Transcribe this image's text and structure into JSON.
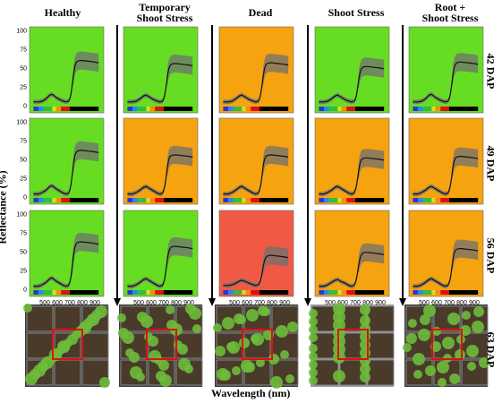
{
  "columns": [
    "Healthy",
    "Temporary\nShoot Stress",
    "Dead",
    "Shoot Stress",
    "Root +\nShoot Stress"
  ],
  "rows": [
    "42 DAP",
    "49 DAP",
    "56 DAP",
    "63 DAP"
  ],
  "axis": {
    "ylabel": "Reflectance (%)",
    "xlabel": "Wavelength (nm)",
    "yticks": [
      "0",
      "25",
      "50",
      "75",
      "100"
    ],
    "xticks": [
      "500",
      "600",
      "700",
      "800",
      "900"
    ]
  },
  "colors": {
    "healthy": "#66dd22",
    "stress": "#f5a30f",
    "dead": "#f05a45",
    "band": "#707070",
    "mean": "#111111"
  },
  "chart_data": {
    "type": "line",
    "title": "",
    "xlabel": "Wavelength (nm)",
    "ylabel": "Reflectance (%)",
    "xlim": [
      400,
      950
    ],
    "ylim": [
      0,
      100
    ],
    "grid": false,
    "x": [
      410,
      450,
      480,
      510,
      540,
      560,
      590,
      620,
      650,
      670,
      690,
      700,
      710,
      720,
      730,
      740,
      750,
      760,
      780,
      800,
      850,
      900,
      930
    ],
    "panels": [
      {
        "row": "42 DAP",
        "column": "Healthy",
        "status": "healthy",
        "mean": [
          5,
          5,
          6,
          9,
          14,
          15,
          11,
          8,
          6,
          5,
          6,
          9,
          16,
          28,
          42,
          52,
          57,
          59,
          60,
          60,
          59,
          58,
          57
        ]
      },
      {
        "row": "42 DAP",
        "column": "Temporary Shoot Stress",
        "status": "healthy",
        "mean": [
          5,
          5,
          6,
          9,
          13,
          14,
          11,
          8,
          6,
          5,
          6,
          9,
          16,
          27,
          40,
          49,
          53,
          55,
          56,
          56,
          55,
          54,
          53
        ]
      },
      {
        "row": "42 DAP",
        "column": "Dead",
        "status": "stress",
        "mean": [
          5,
          5,
          6,
          9,
          13,
          14,
          11,
          8,
          6,
          5,
          6,
          9,
          16,
          27,
          40,
          49,
          54,
          56,
          57,
          57,
          56,
          55,
          54
        ]
      },
      {
        "row": "42 DAP",
        "column": "Shoot Stress",
        "status": "healthy",
        "mean": [
          5,
          5,
          6,
          9,
          13,
          14,
          11,
          8,
          6,
          5,
          6,
          8,
          14,
          25,
          37,
          45,
          49,
          51,
          52,
          52,
          51,
          50,
          49
        ]
      },
      {
        "row": "42 DAP",
        "column": "Root + Shoot Stress",
        "status": "healthy",
        "mean": [
          5,
          5,
          6,
          9,
          14,
          15,
          11,
          8,
          6,
          5,
          6,
          9,
          16,
          28,
          42,
          51,
          55,
          57,
          58,
          58,
          57,
          56,
          55
        ]
      },
      {
        "row": "49 DAP",
        "column": "Healthy",
        "status": "healthy",
        "mean": [
          4,
          4,
          6,
          9,
          14,
          15,
          11,
          8,
          5,
          4,
          5,
          9,
          17,
          30,
          45,
          55,
          59,
          61,
          62,
          62,
          61,
          60,
          59
        ]
      },
      {
        "row": "49 DAP",
        "column": "Temporary Shoot Stress",
        "status": "stress",
        "mean": [
          4,
          4,
          6,
          9,
          13,
          14,
          11,
          8,
          5,
          4,
          5,
          9,
          16,
          28,
          41,
          50,
          54,
          55,
          56,
          56,
          55,
          54,
          53
        ]
      },
      {
        "row": "49 DAP",
        "column": "Dead",
        "status": "stress",
        "mean": [
          4,
          4,
          6,
          9,
          13,
          14,
          11,
          8,
          5,
          4,
          5,
          9,
          16,
          28,
          42,
          50,
          54,
          55,
          56,
          56,
          55,
          54,
          53
        ]
      },
      {
        "row": "49 DAP",
        "column": "Shoot Stress",
        "status": "stress",
        "mean": [
          4,
          4,
          6,
          9,
          13,
          14,
          11,
          8,
          5,
          4,
          5,
          9,
          15,
          26,
          38,
          46,
          50,
          51,
          52,
          52,
          51,
          50,
          49
        ]
      },
      {
        "row": "49 DAP",
        "column": "Root + Shoot Stress",
        "status": "stress",
        "mean": [
          4,
          4,
          6,
          9,
          13,
          14,
          11,
          8,
          5,
          4,
          5,
          9,
          16,
          27,
          40,
          48,
          52,
          53,
          54,
          54,
          53,
          52,
          51
        ]
      },
      {
        "row": "56 DAP",
        "column": "Healthy",
        "status": "healthy",
        "mean": [
          4,
          4,
          6,
          9,
          14,
          15,
          11,
          8,
          5,
          4,
          5,
          9,
          17,
          31,
          46,
          56,
          60,
          62,
          63,
          63,
          62,
          61,
          60
        ]
      },
      {
        "row": "56 DAP",
        "column": "Temporary Shoot Stress",
        "status": "healthy",
        "mean": [
          4,
          4,
          6,
          9,
          13,
          14,
          11,
          8,
          5,
          4,
          5,
          9,
          16,
          28,
          42,
          50,
          54,
          56,
          57,
          57,
          56,
          55,
          54
        ]
      },
      {
        "row": "56 DAP",
        "column": "Dead",
        "status": "dead",
        "mean": [
          5,
          5,
          6,
          8,
          11,
          12,
          10,
          8,
          6,
          5,
          6,
          8,
          13,
          21,
          31,
          38,
          42,
          44,
          45,
          45,
          44,
          43,
          42
        ]
      },
      {
        "row": "56 DAP",
        "column": "Shoot Stress",
        "status": "stress",
        "mean": [
          4,
          4,
          6,
          9,
          12,
          13,
          10,
          8,
          5,
          4,
          5,
          8,
          14,
          24,
          35,
          42,
          46,
          48,
          49,
          49,
          48,
          47,
          46
        ]
      },
      {
        "row": "56 DAP",
        "column": "Root + Shoot Stress",
        "status": "stress",
        "mean": [
          4,
          4,
          6,
          9,
          13,
          14,
          11,
          8,
          5,
          4,
          5,
          9,
          15,
          27,
          40,
          48,
          52,
          53,
          54,
          54,
          53,
          52,
          51
        ]
      }
    ]
  }
}
